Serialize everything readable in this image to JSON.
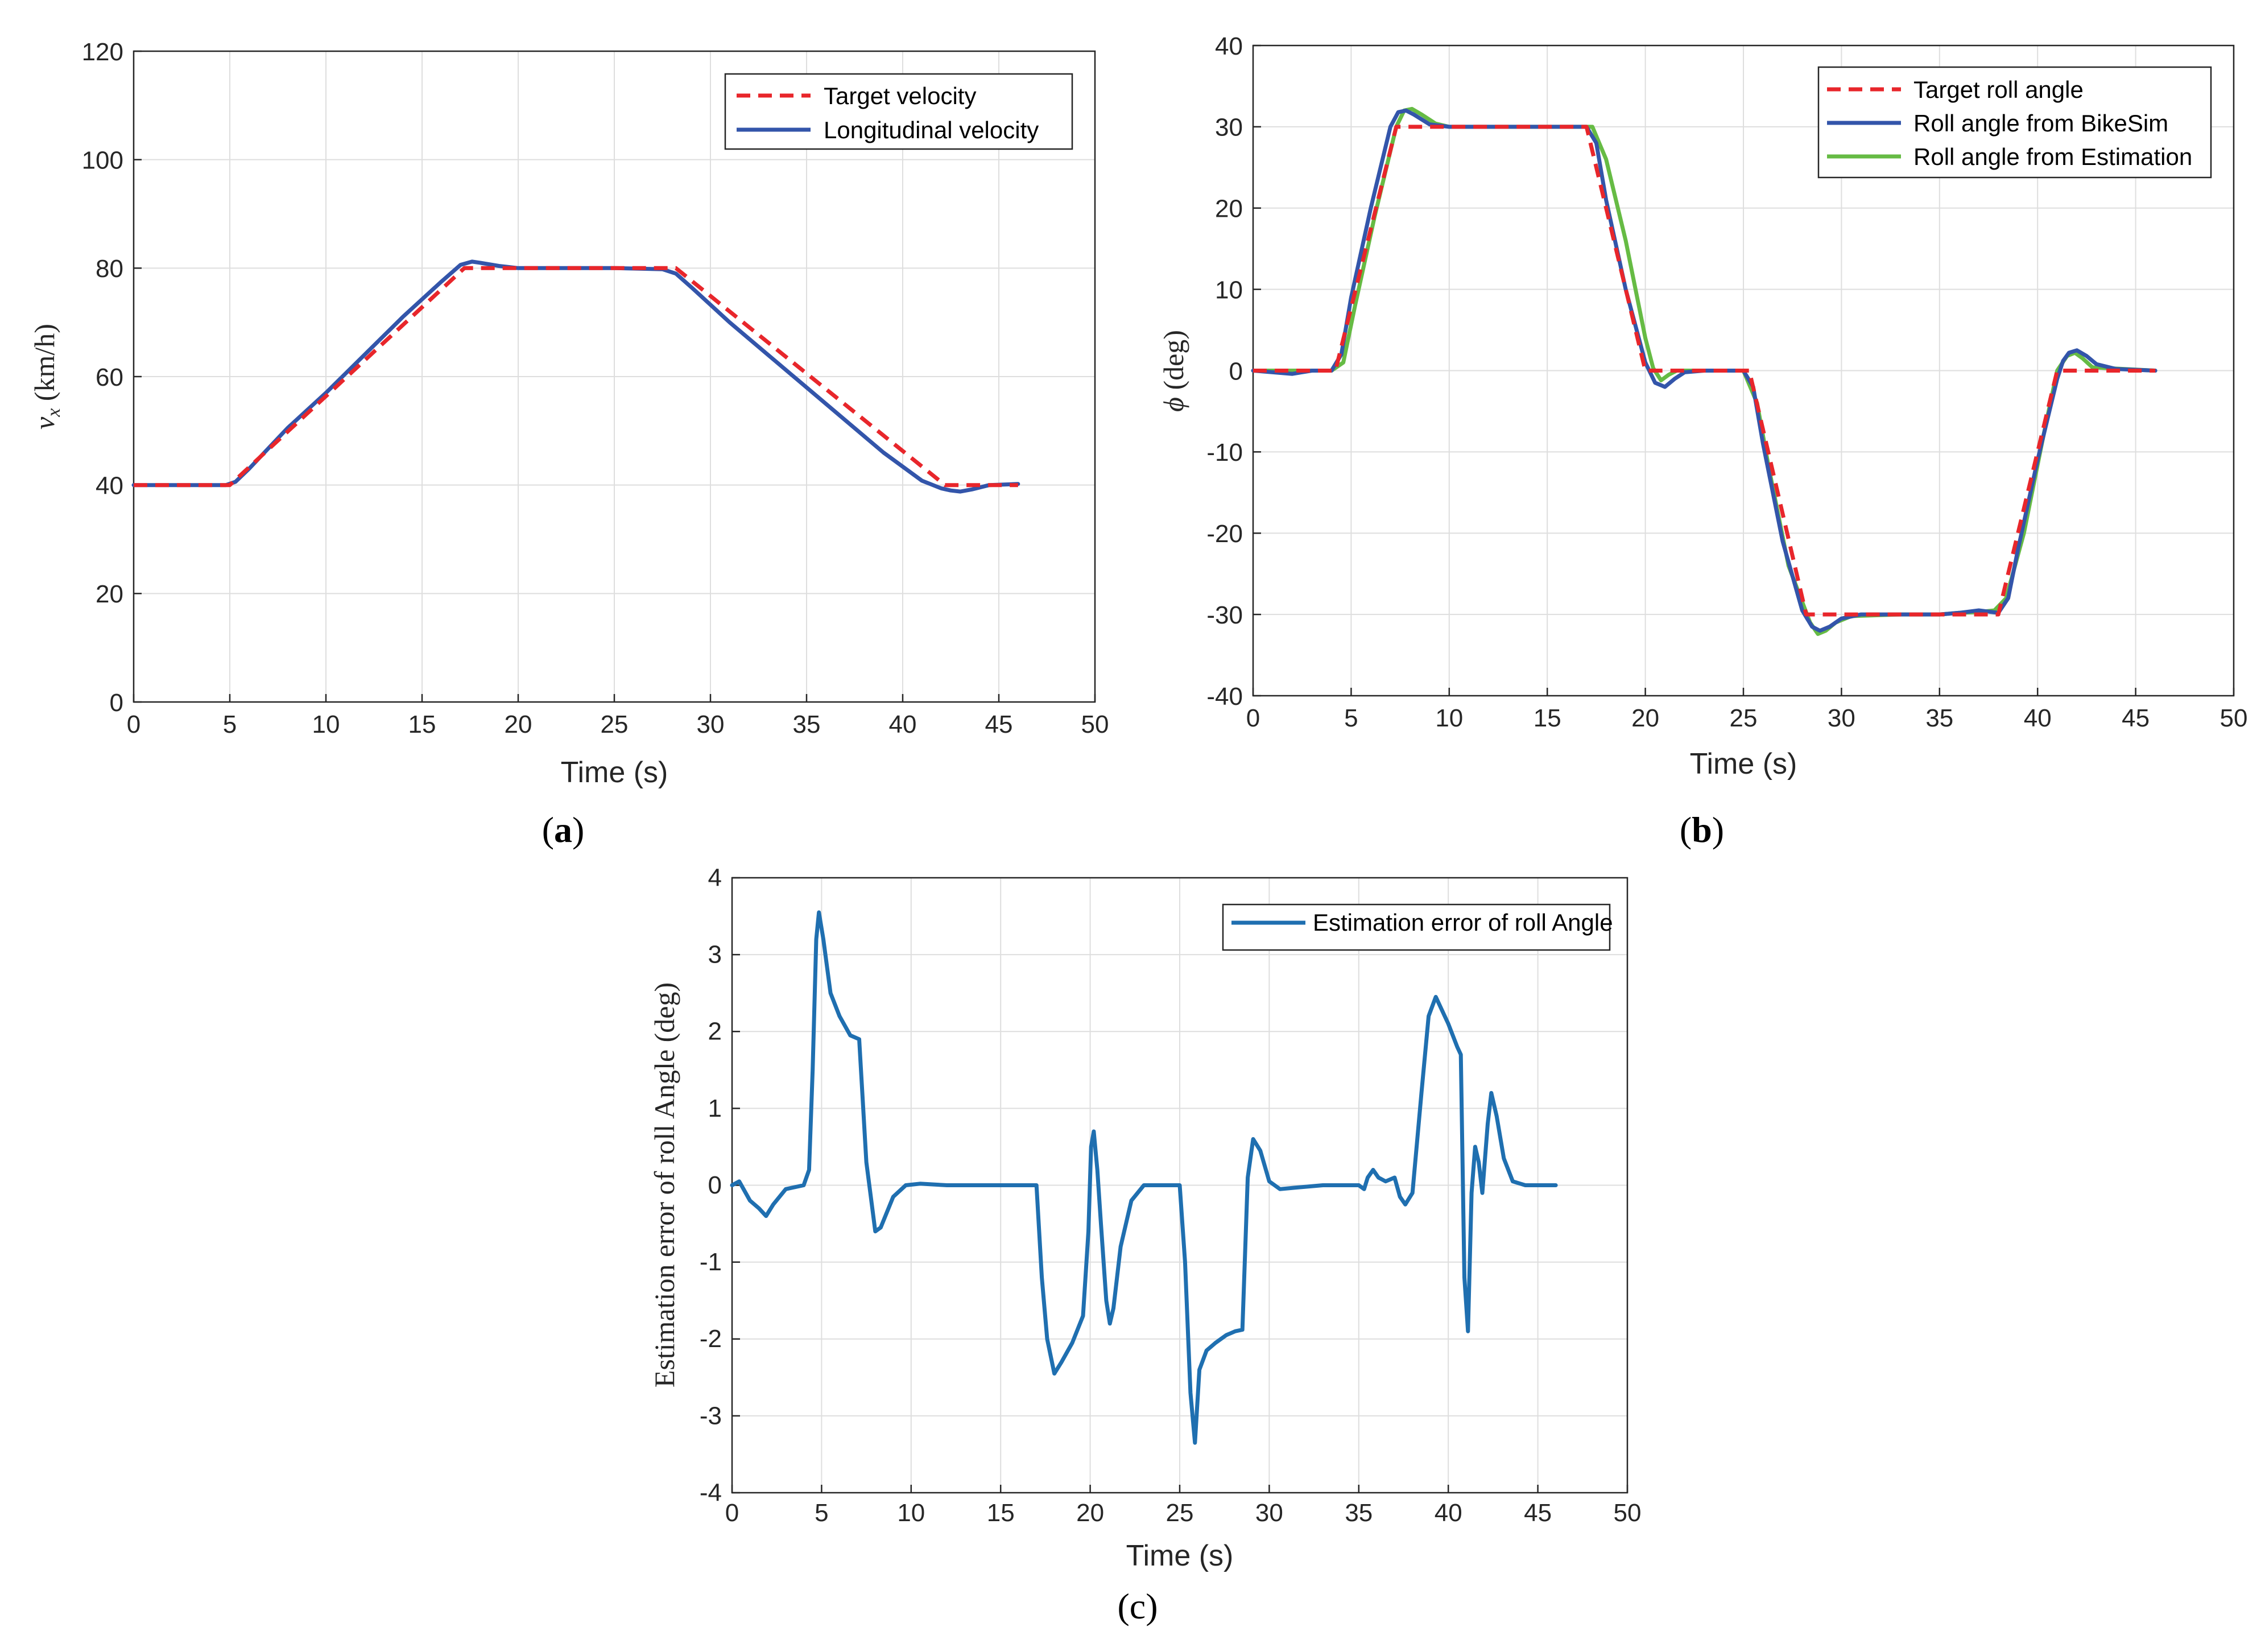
{
  "colors": {
    "target": "#e8262b",
    "bikesim": "#3355aa",
    "estimation": "#66bb44",
    "error": "#1f6fb0",
    "grid": "#dedede",
    "axis": "#262626"
  },
  "chart_data": [
    {
      "id": "a",
      "type": "line",
      "caption": "a",
      "xlabel": "Time (s)",
      "ylabel": "v_x (km/h)",
      "ylabel_symbol": "v",
      "ylabel_sub": "x",
      "ylabel_unit": " (km/h)",
      "xlim": [
        0,
        50
      ],
      "ylim": [
        0,
        120
      ],
      "xticks": [
        "0",
        "5",
        "10",
        "15",
        "20",
        "25",
        "30",
        "35",
        "40",
        "45",
        "50"
      ],
      "yticks": [
        "0",
        "20",
        "40",
        "60",
        "80",
        "100",
        "120"
      ],
      "grid": true,
      "legend_position": "top-right",
      "series": [
        {
          "name": "Target velocity",
          "style": "dashed",
          "color": "target",
          "x": [
            0,
            5,
            17.2,
            28.2,
            42.2,
            46
          ],
          "y": [
            40,
            40,
            80,
            80,
            40,
            40
          ]
        },
        {
          "name": "Longitudinal velocity",
          "style": "solid",
          "color": "bikesim",
          "x": [
            0,
            4.8,
            5.3,
            6,
            8,
            10,
            12,
            14,
            16,
            17,
            17.6,
            18,
            19,
            20,
            22,
            25,
            27.5,
            28.2,
            29,
            31,
            33,
            35,
            37,
            39,
            41,
            42,
            42.5,
            43,
            43.6,
            44.5,
            46
          ],
          "y": [
            40,
            40,
            40.6,
            43,
            50.5,
            57,
            64,
            71,
            77.5,
            80.6,
            81.2,
            81,
            80.4,
            80,
            80,
            80,
            79.8,
            79,
            76.5,
            70,
            64,
            58,
            52,
            46,
            40.8,
            39.4,
            39,
            38.8,
            39.2,
            40,
            40.2
          ]
        }
      ]
    },
    {
      "id": "b",
      "type": "line",
      "caption": "b",
      "xlabel": "Time (s)",
      "ylabel": "ϕ (deg)",
      "ylabel_symbol": "ϕ",
      "ylabel_unit": " (deg)",
      "xlim": [
        0,
        50
      ],
      "ylim": [
        -40,
        40
      ],
      "xticks": [
        "0",
        "5",
        "10",
        "15",
        "20",
        "25",
        "30",
        "35",
        "40",
        "45",
        "50"
      ],
      "yticks": [
        "-40",
        "-30",
        "-20",
        "-10",
        "0",
        "10",
        "20",
        "30",
        "40"
      ],
      "grid": true,
      "legend_position": "top-right",
      "series": [
        {
          "name": "Target roll angle",
          "style": "dashed",
          "color": "target",
          "x": [
            0,
            4.2,
            7.3,
            17,
            20,
            25.3,
            28.2,
            38,
            41,
            46
          ],
          "y": [
            0,
            0,
            30,
            30,
            0,
            0,
            -30,
            -30,
            0,
            0
          ]
        },
        {
          "name": "Roll angle from BikeSim",
          "style": "solid",
          "color": "bikesim",
          "x": [
            0,
            1,
            2,
            3,
            4,
            4.5,
            5,
            6,
            7,
            7.4,
            7.8,
            8.2,
            9,
            10,
            12,
            15,
            17,
            17.5,
            18,
            19,
            20,
            20.5,
            21,
            21.5,
            22,
            23,
            25,
            25.5,
            26,
            27,
            28,
            28.5,
            28.9,
            29.4,
            30,
            31,
            33,
            35,
            36,
            37,
            38,
            38.5,
            39,
            40,
            41,
            41.3,
            41.6,
            42,
            42.5,
            43,
            44,
            46
          ],
          "y": [
            0,
            -0.2,
            -0.4,
            0,
            0,
            2,
            9,
            20,
            30,
            31.8,
            32,
            31.5,
            30.3,
            30,
            30,
            30,
            30,
            28,
            21,
            10,
            1,
            -1.5,
            -2,
            -1,
            -0.2,
            0,
            0,
            -2,
            -9,
            -21,
            -29.5,
            -31.5,
            -32,
            -31.5,
            -30.5,
            -30,
            -30,
            -30,
            -29.8,
            -29.5,
            -29.8,
            -28,
            -22,
            -11,
            -1,
            1.2,
            2.2,
            2.5,
            1.8,
            0.8,
            0.2,
            0
          ]
        },
        {
          "name": "Roll angle from Estimation",
          "style": "solid",
          "color": "estimation",
          "x": [
            0,
            2,
            4,
            4.6,
            5.2,
            6.2,
            7.3,
            7.7,
            8.1,
            8.6,
            9.3,
            10,
            12,
            15,
            17.3,
            18,
            19,
            20,
            20.4,
            20.8,
            21.2,
            21.6,
            22.5,
            25,
            25.7,
            26.3,
            27.3,
            28.4,
            28.8,
            29.2,
            29.7,
            30.5,
            33,
            35,
            36,
            37,
            37.8,
            38.4,
            39.3,
            40.3,
            41,
            41.5,
            41.9,
            42.3,
            42.8,
            46
          ],
          "y": [
            0,
            0,
            0,
            1,
            8,
            19,
            30,
            32,
            32.2,
            31.5,
            30.4,
            30,
            30,
            30,
            30,
            26,
            16,
            4,
            0.3,
            -1.2,
            -0.5,
            0,
            0,
            0,
            -4,
            -12,
            -24,
            -31,
            -32.4,
            -32,
            -31,
            -30.2,
            -30,
            -30,
            -29.8,
            -29.7,
            -29.5,
            -28,
            -20,
            -8,
            0,
            1.8,
            2.2,
            1.5,
            0.4,
            0
          ]
        }
      ]
    },
    {
      "id": "c",
      "type": "line",
      "caption": "c",
      "xlabel": "Time (s)",
      "ylabel": "Estimation error of roll Angle (deg)",
      "xlim": [
        0,
        50
      ],
      "ylim": [
        -4,
        4
      ],
      "xticks": [
        "0",
        "5",
        "10",
        "15",
        "20",
        "25",
        "30",
        "35",
        "40",
        "45",
        "50"
      ],
      "yticks": [
        "-4",
        "-3",
        "-2",
        "-1",
        "0",
        "1",
        "2",
        "3",
        "4"
      ],
      "grid": true,
      "legend_position": "top-right",
      "series": [
        {
          "name": "Estimation error of roll Angle",
          "style": "solid",
          "color": "error",
          "x": [
            0,
            0.4,
            1,
            1.5,
            1.9,
            2.3,
            3,
            4,
            4.3,
            4.5,
            4.7,
            4.85,
            5.1,
            5.5,
            6,
            6.6,
            7.1,
            7.5,
            8,
            8.3,
            9,
            9.7,
            10.5,
            12,
            15,
            17,
            17.3,
            17.6,
            18,
            18.4,
            19,
            19.6,
            19.9,
            20.05,
            20.2,
            20.4,
            20.6,
            20.9,
            21.1,
            21.3,
            21.7,
            22.3,
            23,
            24,
            25,
            25.3,
            25.6,
            25.85,
            26.1,
            26.5,
            27,
            27.6,
            28.1,
            28.5,
            28.8,
            29.1,
            29.5,
            30,
            30.6,
            31.5,
            33,
            35,
            35.3,
            35.5,
            35.8,
            36.1,
            36.5,
            37,
            37.3,
            37.6,
            38,
            38.5,
            38.9,
            39.3,
            40,
            40.5,
            40.7,
            40.9,
            41.1,
            41.3,
            41.5,
            41.7,
            41.9,
            42.2,
            42.4,
            42.7,
            43.1,
            43.6,
            44.3,
            46
          ],
          "y": [
            0,
            0.05,
            -0.2,
            -0.3,
            -0.4,
            -0.25,
            -0.05,
            0,
            0.2,
            1.5,
            3.2,
            3.55,
            3.2,
            2.5,
            2.2,
            1.95,
            1.9,
            0.3,
            -0.6,
            -0.55,
            -0.15,
            0,
            0.02,
            0,
            0,
            0,
            -1.2,
            -2,
            -2.45,
            -2.3,
            -2.05,
            -1.7,
            -0.6,
            0.5,
            0.7,
            0.2,
            -0.5,
            -1.5,
            -1.8,
            -1.6,
            -0.8,
            -0.2,
            0,
            0,
            0,
            -1,
            -2.7,
            -3.35,
            -2.4,
            -2.15,
            -2.05,
            -1.95,
            -1.9,
            -1.88,
            0.1,
            0.6,
            0.45,
            0.05,
            -0.05,
            -0.03,
            0,
            0,
            -0.05,
            0.1,
            0.2,
            0.1,
            0.05,
            0.1,
            -0.15,
            -0.25,
            -0.1,
            1.2,
            2.2,
            2.45,
            2.1,
            1.8,
            1.7,
            -1.2,
            -1.9,
            -0.1,
            0.5,
            0.3,
            -0.1,
            0.8,
            1.2,
            0.9,
            0.35,
            0.05,
            0,
            0
          ]
        }
      ]
    }
  ]
}
